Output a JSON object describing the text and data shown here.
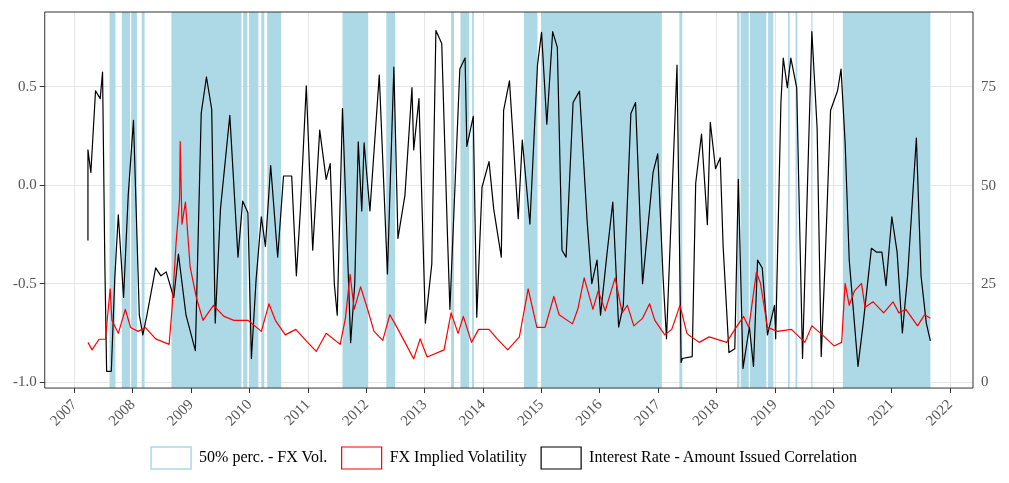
{
  "chart_data": {
    "type": "line",
    "xlim": [
      2006.49,
      2022.39
    ],
    "xticks": [
      2007,
      2008,
      2009,
      2010,
      2011,
      2012,
      2013,
      2014,
      2015,
      2016,
      2017,
      2018,
      2019,
      2020,
      2021,
      2022
    ],
    "ylim": [
      -1.03,
      0.88
    ],
    "yticks": [
      {
        "value": -1,
        "label": "-1.0"
      },
      {
        "value": -0.5,
        "label": "-0.5"
      },
      {
        "value": 0,
        "label": "0.0"
      },
      {
        "value": 0.5,
        "label": "0.5"
      }
    ],
    "y2lim": [
      -1.4,
      94.1
    ],
    "y2ticks": [
      0,
      25,
      50,
      75
    ],
    "grid": true,
    "legend": "bottom",
    "bands": [
      {
        "axis": "x",
        "from": 2007.6,
        "to": 2007.7,
        "label": "50% perc. - FX Vol.",
        "color": "#add8e6"
      },
      {
        "axis": "x",
        "from": 2007.81,
        "to": 2007.95,
        "color": "#add8e6"
      },
      {
        "axis": "x",
        "from": 2007.97,
        "to": 2008.07,
        "color": "#add8e6"
      },
      {
        "axis": "x",
        "from": 2008.15,
        "to": 2008.2,
        "color": "#add8e6"
      },
      {
        "axis": "x",
        "from": 2008.66,
        "to": 2009.86,
        "color": "#add8e6"
      },
      {
        "axis": "x",
        "from": 2009.89,
        "to": 2009.96,
        "color": "#add8e6"
      },
      {
        "axis": "x",
        "from": 2009.99,
        "to": 2010.15,
        "color": "#add8e6"
      },
      {
        "axis": "x",
        "from": 2010.2,
        "to": 2010.25,
        "color": "#add8e6"
      },
      {
        "axis": "x",
        "from": 2010.3,
        "to": 2010.54,
        "color": "#add8e6"
      },
      {
        "axis": "x",
        "from": 2011.59,
        "to": 2012.03,
        "color": "#add8e6"
      },
      {
        "axis": "x",
        "from": 2012.34,
        "to": 2012.49,
        "color": "#add8e6"
      },
      {
        "axis": "x",
        "from": 2013.45,
        "to": 2013.5,
        "color": "#add8e6"
      },
      {
        "axis": "x",
        "from": 2013.61,
        "to": 2013.76,
        "color": "#add8e6"
      },
      {
        "axis": "x",
        "from": 2013.81,
        "to": 2013.84,
        "color": "#add8e6"
      },
      {
        "axis": "x",
        "from": 2014.7,
        "to": 2014.93,
        "color": "#add8e6"
      },
      {
        "axis": "x",
        "from": 2014.99,
        "to": 2017.06,
        "color": "#add8e6"
      },
      {
        "axis": "x",
        "from": 2017.36,
        "to": 2017.41,
        "color": "#add8e6"
      },
      {
        "axis": "x",
        "from": 2018.35,
        "to": 2018.39,
        "color": "#add8e6"
      },
      {
        "axis": "x",
        "from": 2018.41,
        "to": 2018.55,
        "color": "#add8e6"
      },
      {
        "axis": "x",
        "from": 2018.57,
        "to": 2018.85,
        "color": "#add8e6"
      },
      {
        "axis": "x",
        "from": 2018.88,
        "to": 2018.97,
        "color": "#add8e6"
      },
      {
        "axis": "x",
        "from": 2019.22,
        "to": 2019.25,
        "color": "#add8e6"
      },
      {
        "axis": "x",
        "from": 2019.35,
        "to": 2019.38,
        "color": "#add8e6"
      },
      {
        "axis": "x",
        "from": 2019.62,
        "to": 2019.64,
        "color": "#add8e6"
      },
      {
        "axis": "x",
        "from": 2020.16,
        "to": 2021.66,
        "color": "#add8e6"
      }
    ],
    "series": [
      {
        "name": "FX Implied Volatility",
        "color": "#ff0000",
        "axis": "y2",
        "x": [
          2007.23,
          2007.3,
          2007.42,
          2007.53,
          2007.61,
          2007.64,
          2007.75,
          2007.87,
          2007.96,
          2008.09,
          2008.21,
          2008.39,
          2008.62,
          2008.67,
          2008.74,
          2008.8,
          2008.81,
          2008.84,
          2008.9,
          2008.98,
          2009.09,
          2009.2,
          2009.38,
          2009.56,
          2009.73,
          2009.97,
          2010.2,
          2010.33,
          2010.44,
          2010.61,
          2010.79,
          2010.96,
          2011.14,
          2011.31,
          2011.55,
          2011.64,
          2011.72,
          2011.79,
          2011.9,
          2012.02,
          2012.13,
          2012.28,
          2012.4,
          2012.49,
          2012.66,
          2012.81,
          2012.92,
          2013.04,
          2013.33,
          2013.45,
          2013.57,
          2013.66,
          2013.8,
          2013.92,
          2014.1,
          2014.24,
          2014.42,
          2014.62,
          2014.77,
          2014.92,
          2015.06,
          2015.21,
          2015.3,
          2015.53,
          2015.62,
          2015.73,
          2015.88,
          2015.97,
          2016.09,
          2016.26,
          2016.38,
          2016.47,
          2016.58,
          2016.73,
          2016.85,
          2016.94,
          2017.11,
          2017.23,
          2017.37,
          2017.49,
          2017.52,
          2017.7,
          2017.87,
          2018.17,
          2018.31,
          2018.46,
          2018.55,
          2018.68,
          2018.75,
          2018.87,
          2019.04,
          2019.28,
          2019.51,
          2019.63,
          2019.81,
          2020.01,
          2020.14,
          2020.2,
          2020.27,
          2020.36,
          2020.48,
          2020.54,
          2020.68,
          2020.86,
          2021.02,
          2021.12,
          2021.24,
          2021.44,
          2021.56,
          2021.66
        ],
        "values": [
          10.2,
          8.3,
          11.0,
          11.0,
          23.8,
          15.8,
          12.5,
          18.6,
          14.0,
          13.0,
          14.0,
          11.1,
          9.7,
          18.6,
          35.5,
          46.7,
          61.2,
          40.2,
          45.8,
          29.4,
          21.4,
          15.8,
          19.6,
          16.8,
          15.8,
          15.8,
          13.0,
          20.0,
          15.8,
          12.1,
          13.5,
          10.7,
          7.9,
          12.5,
          9.7,
          16.3,
          27.5,
          18.6,
          24.3,
          18.6,
          13.0,
          10.7,
          17.2,
          14.9,
          10.2,
          6.0,
          11.1,
          6.5,
          8.3,
          17.7,
          12.5,
          16.8,
          10.2,
          13.5,
          13.5,
          11.1,
          8.3,
          11.6,
          23.8,
          14.0,
          14.0,
          21.9,
          17.2,
          14.9,
          18.6,
          26.6,
          18.6,
          23.3,
          18.2,
          26.6,
          17.7,
          19.6,
          14.4,
          16.3,
          20.0,
          15.8,
          12.1,
          13.5,
          19.6,
          12.5,
          12.1,
          10.2,
          11.6,
          10.2,
          13.5,
          16.8,
          14.0,
          28.0,
          25.2,
          14.0,
          13.0,
          13.5,
          10.2,
          14.4,
          12.1,
          9.3,
          10.2,
          25.2,
          19.6,
          23.3,
          25.2,
          19.1,
          20.5,
          17.7,
          20.5,
          17.7,
          18.6,
          14.4,
          17.2,
          16.3
        ]
      },
      {
        "name": "Interest Rate - Amount Issued Correlation",
        "color": "#000000",
        "x": [
          2007.23,
          2007.23,
          2007.28,
          2007.36,
          2007.44,
          2007.48,
          2007.52,
          2007.55,
          2007.63,
          2007.69,
          2007.75,
          2007.84,
          2007.92,
          2008.01,
          2008.11,
          2008.17,
          2008.24,
          2008.39,
          2008.48,
          2008.57,
          2008.7,
          2008.78,
          2008.91,
          2009.07,
          2009.17,
          2009.26,
          2009.35,
          2009.41,
          2009.5,
          2009.66,
          2009.8,
          2009.88,
          2009.97,
          2010.03,
          2010.11,
          2010.2,
          2010.27,
          2010.36,
          2010.48,
          2010.58,
          2010.72,
          2010.8,
          2010.87,
          2010.97,
          2011.08,
          2011.2,
          2011.31,
          2011.38,
          2011.45,
          2011.5,
          2011.59,
          2011.65,
          2011.73,
          2011.8,
          2011.86,
          2011.92,
          2011.96,
          2012.06,
          2012.22,
          2012.36,
          2012.47,
          2012.54,
          2012.66,
          2012.78,
          2012.81,
          2012.9,
          2013.01,
          2013.12,
          2013.19,
          2013.29,
          2013.39,
          2013.43,
          2013.6,
          2013.69,
          2013.72,
          2013.83,
          2013.89,
          2013.98,
          2014.1,
          2014.18,
          2014.31,
          2014.35,
          2014.45,
          2014.6,
          2014.67,
          2014.8,
          2014.93,
          2015.0,
          2015.09,
          2015.19,
          2015.27,
          2015.35,
          2015.42,
          2015.54,
          2015.65,
          2015.78,
          2015.86,
          2015.95,
          2016.01,
          2016.12,
          2016.22,
          2016.32,
          2016.4,
          2016.53,
          2016.61,
          2016.73,
          2016.91,
          2016.99,
          2017.08,
          2017.14,
          2017.32,
          2017.39,
          2017.41,
          2017.58,
          2017.64,
          2017.74,
          2017.84,
          2017.89,
          2017.98,
          2018.06,
          2018.11,
          2018.21,
          2018.31,
          2018.37,
          2018.45,
          2018.56,
          2018.63,
          2018.7,
          2018.78,
          2018.87,
          2018.99,
          2019.01,
          2019.1,
          2019.14,
          2019.21,
          2019.27,
          2019.37,
          2019.47,
          2019.63,
          2019.72,
          2019.79,
          2019.86,
          2019.95,
          2020.07,
          2020.13,
          2020.2,
          2020.27,
          2020.42,
          2020.51,
          2020.65,
          2020.74,
          2020.83,
          2020.9,
          2021.0,
          2021.09,
          2021.18,
          2021.27,
          2021.42,
          2021.5,
          2021.59,
          2021.66
        ],
        "values": [
          -0.28,
          0.18,
          0.065,
          0.48,
          0.44,
          0.575,
          -0.41,
          -0.945,
          -0.945,
          -0.47,
          -0.15,
          -0.57,
          -0.05,
          0.33,
          -0.66,
          -0.76,
          -0.66,
          -0.42,
          -0.46,
          -0.44,
          -0.57,
          -0.35,
          -0.66,
          -0.84,
          0.365,
          0.55,
          0.385,
          -0.7,
          -0.12,
          0.355,
          -0.365,
          -0.08,
          -0.14,
          -0.88,
          -0.48,
          -0.16,
          -0.31,
          0.1,
          -0.365,
          0.047,
          0.047,
          -0.46,
          -0.12,
          0.505,
          -0.33,
          0.28,
          0.03,
          0.11,
          -0.5,
          -0.66,
          0.39,
          -0.12,
          -0.8,
          -0.5,
          0.22,
          -0.13,
          0.215,
          -0.13,
          0.56,
          -0.45,
          0.6,
          -0.27,
          -0.05,
          0.496,
          0.18,
          0.44,
          -0.7,
          -0.4,
          0.786,
          0.72,
          -0.27,
          -0.63,
          0.59,
          0.646,
          0.197,
          0.35,
          -0.67,
          -0.01,
          0.12,
          -0.12,
          -0.365,
          0.38,
          0.53,
          -0.17,
          0.23,
          -0.197,
          0.61,
          0.777,
          0.31,
          0.78,
          0.7,
          -0.33,
          -0.365,
          0.42,
          0.478,
          -0.18,
          -0.5,
          -0.38,
          -0.66,
          -0.35,
          -0.085,
          -0.72,
          -0.61,
          0.365,
          0.42,
          -0.5,
          0.065,
          0.16,
          -0.46,
          -0.78,
          0.61,
          -0.9,
          -0.88,
          -0.87,
          0.01,
          0.26,
          -0.2,
          0.32,
          0.084,
          0.14,
          -0.31,
          -0.85,
          -0.83,
          0.03,
          -0.93,
          -0.72,
          -0.92,
          -0.38,
          -0.42,
          -0.76,
          -0.61,
          -0.78,
          0.42,
          0.646,
          0.496,
          0.646,
          0.496,
          -0.88,
          0.78,
          0.29,
          -0.87,
          -0.365,
          0.38,
          0.48,
          0.59,
          0.215,
          -0.38,
          -0.92,
          -0.7,
          -0.32,
          -0.34,
          -0.34,
          -0.51,
          -0.16,
          -0.34,
          -0.75,
          -0.46,
          0.24,
          -0.46,
          -0.7,
          -0.79
        ]
      }
    ]
  }
}
